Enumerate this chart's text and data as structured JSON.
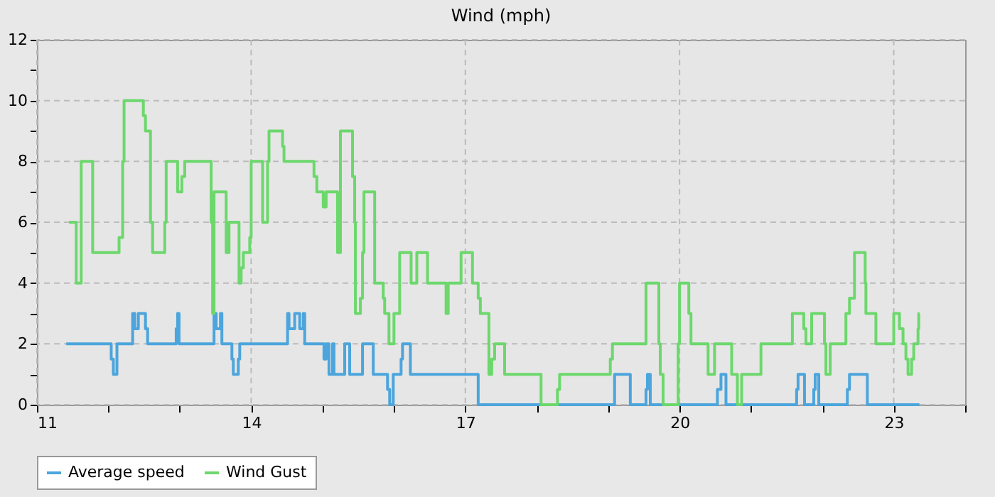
{
  "chart_data": {
    "type": "step",
    "title": "Wind (mph)",
    "xlim": [
      11,
      24
    ],
    "ylim": [
      0,
      12
    ],
    "xticks": [
      11,
      {
        "value": 12,
        "label": null
      },
      {
        "value": 13,
        "label": null
      },
      14,
      {
        "value": 15,
        "label": null
      },
      {
        "value": 16,
        "label": null
      },
      17,
      {
        "value": 18,
        "label": null
      },
      {
        "value": 19,
        "label": null
      },
      20,
      {
        "value": 21,
        "label": null
      },
      {
        "value": 22,
        "label": null
      },
      23,
      {
        "value": 24,
        "label": null
      }
    ],
    "yticks": [
      0,
      {
        "value": 1,
        "label": null
      },
      2,
      {
        "value": 3,
        "label": null
      },
      4,
      {
        "value": 5,
        "label": null
      },
      6,
      {
        "value": 7,
        "label": null
      },
      8,
      {
        "value": 9,
        "label": null
      },
      10,
      {
        "value": 11,
        "label": null
      },
      12
    ],
    "grid": true,
    "legend": "bottom",
    "series": [
      {
        "name": "Average speed",
        "color": "#4ca5dc",
        "x": [
          11.41,
          12.04,
          12.07,
          12.12,
          12.34,
          12.37,
          12.42,
          12.52,
          12.55,
          12.95,
          12.97,
          12.99,
          13.48,
          13.51,
          13.57,
          13.59,
          13.73,
          13.75,
          13.82,
          13.84,
          14.51,
          14.53,
          14.61,
          14.68,
          14.73,
          14.75,
          15.02,
          15.05,
          15.09,
          15.14,
          15.16,
          15.31,
          15.38,
          15.56,
          15.71,
          15.91,
          15.94,
          15.99,
          16.1,
          16.12,
          16.23,
          17.18,
          19.09,
          19.31,
          19.53,
          19.55,
          19.59,
          20.53,
          20.58,
          20.65,
          21.64,
          21.66,
          21.75,
          21.88,
          21.9,
          21.95,
          22.35,
          22.38,
          22.63,
          23.36
        ],
        "values": [
          2,
          1.5,
          1,
          2,
          3,
          2.5,
          3,
          2.5,
          2,
          2.5,
          3,
          2,
          3,
          2.5,
          3,
          2,
          1.5,
          1,
          1.5,
          2,
          3,
          2.5,
          3,
          2.5,
          3,
          2,
          1.5,
          2,
          1,
          2,
          1,
          2,
          1,
          2,
          1,
          0.5,
          0,
          1,
          1.5,
          2,
          1,
          0,
          1,
          0,
          0.5,
          1,
          0,
          0.5,
          1,
          0,
          0.5,
          1,
          0,
          0.5,
          1,
          0,
          0.5,
          1,
          0,
          0
        ]
      },
      {
        "name": "Wind Gust",
        "color": "#6cd86c",
        "x": [
          11.45,
          11.55,
          11.62,
          11.78,
          12.15,
          12.2,
          12.22,
          12.49,
          12.52,
          12.59,
          12.62,
          12.79,
          12.81,
          12.97,
          13.03,
          13.07,
          13.44,
          13.46,
          13.48,
          13.65,
          13.69,
          13.83,
          13.86,
          13.89,
          13.98,
          14.0,
          14.16,
          14.23,
          14.25,
          14.44,
          14.46,
          14.88,
          14.92,
          15.01,
          15.05,
          15.21,
          15.25,
          15.42,
          15.45,
          15.46,
          15.53,
          15.56,
          15.58,
          15.73,
          15.85,
          15.87,
          15.93,
          16.0,
          16.08,
          16.24,
          16.32,
          16.47,
          16.73,
          16.76,
          16.94,
          17.1,
          17.18,
          17.21,
          17.33,
          17.37,
          17.41,
          17.55,
          18.06,
          18.29,
          18.32,
          19.03,
          19.06,
          19.53,
          19.71,
          19.73,
          19.77,
          19.98,
          20.0,
          20.13,
          20.16,
          20.4,
          20.49,
          20.73,
          20.81,
          20.87,
          21.14,
          21.58,
          21.62,
          21.74,
          21.77,
          21.85,
          22.03,
          22.05,
          22.11,
          22.33,
          22.38,
          22.45,
          22.6,
          22.61,
          22.75,
          23.0,
          23.08,
          23.13,
          23.17,
          23.2,
          23.25,
          23.28,
          23.34,
          23.35,
          23.36
        ],
        "values": [
          6,
          4,
          8,
          5,
          5.5,
          8,
          10,
          9.5,
          9,
          6,
          5,
          6,
          8,
          7,
          7.5,
          8,
          6,
          3,
          7,
          5,
          6,
          4,
          4.5,
          5,
          5.5,
          8,
          6,
          8,
          9,
          8.5,
          8,
          7.5,
          7,
          6.5,
          7,
          5,
          9,
          7.5,
          6,
          3,
          3.5,
          5,
          7,
          4,
          3.5,
          3,
          2,
          3,
          5,
          4,
          5,
          4,
          3,
          4,
          5,
          4,
          3.5,
          3,
          1,
          1.5,
          2,
          1,
          0,
          0.5,
          1,
          1.5,
          2,
          4,
          2,
          1,
          0,
          2,
          4,
          3,
          2,
          1,
          2,
          1,
          0,
          1,
          2,
          3,
          3,
          2.5,
          2,
          3,
          2,
          1,
          2,
          3,
          3.5,
          5,
          4,
          3,
          2,
          3,
          2.5,
          2,
          1.5,
          1,
          1.5,
          2,
          2.5,
          3,
          3
        ]
      }
    ]
  }
}
